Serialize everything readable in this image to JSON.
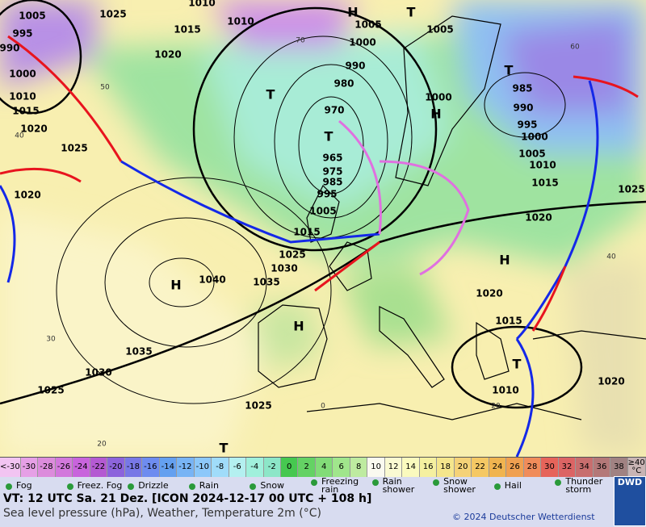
{
  "map": {
    "pressure_labels": [
      "1005",
      "1025",
      "1010",
      "1010",
      "1015",
      "1020",
      "995",
      "990",
      "1000",
      "1010",
      "1015",
      "1020",
      "1025",
      "1020",
      "1005",
      "1000",
      "1005",
      "990",
      "980",
      "970",
      "965",
      "975",
      "985",
      "995",
      "1005",
      "1015",
      "1025",
      "1030",
      "1035",
      "1040",
      "1035",
      "1030",
      "1025",
      "1025",
      "1000",
      "985",
      "990",
      "995",
      "1000",
      "1005",
      "1010",
      "1015",
      "1020",
      "1025",
      "1020",
      "1015",
      "1010",
      "1020"
    ],
    "centers": [
      "H",
      "T",
      "T",
      "T",
      "H",
      "T",
      "H",
      "H",
      "H",
      "T",
      "T"
    ],
    "temperature_labels": [
      "60",
      "70",
      "50",
      "40",
      "40",
      "30",
      "20",
      "0",
      "20"
    ]
  },
  "color_scale": {
    "labels": [
      "<-30",
      "-30",
      "-28",
      "-26",
      "-24",
      "-22",
      "-20",
      "-18",
      "-16",
      "-14",
      "-12",
      "-10",
      "-8",
      "-6",
      "-4",
      "-2",
      "0",
      "2",
      "4",
      "6",
      "8",
      "10",
      "12",
      "14",
      "16",
      "18",
      "20",
      "22",
      "24",
      "26",
      "28",
      "30",
      "32",
      "34",
      "36",
      "38",
      "≥40 °C"
    ],
    "colors": [
      "#f2c4f2",
      "#e6a0e6",
      "#dc8cdc",
      "#d278dc",
      "#c864dc",
      "#b45ad2",
      "#8c64dc",
      "#7878e6",
      "#6e8cf0",
      "#64a0f0",
      "#78b4f5",
      "#8cc8fa",
      "#a0dcfa",
      "#b4f0f0",
      "#a0f0dc",
      "#8ce6c8",
      "#46c850",
      "#64d264",
      "#82dc78",
      "#a0e68c",
      "#beeba0",
      "#fafaf0",
      "#fafad2",
      "#fafabe",
      "#f5f0a0",
      "#f5e68c",
      "#f5d278",
      "#f5c864",
      "#f0b450",
      "#f0a050",
      "#f08c5a",
      "#e6645a",
      "#dc6464",
      "#c86e6e",
      "#b47878",
      "#a08282",
      "#c8b4b4"
    ]
  },
  "weather_legend": [
    "Fog",
    "Freez. Fog",
    "Drizzle",
    "Rain",
    "Snow",
    "Freezing rain",
    "Rain shower",
    "Snow shower",
    "Hail",
    "Thunder storm"
  ],
  "footer": {
    "valid_time": "VT: 12 UTC Sa.  21 Dez. [ICON 2024-12-17  00 UTC + 108 h]",
    "description": "Sea level pressure (hPa), Weather, Temperature 2m (°C)",
    "copyright": "© 2024 Deutscher Wetterdienst",
    "logo": "DWD"
  }
}
